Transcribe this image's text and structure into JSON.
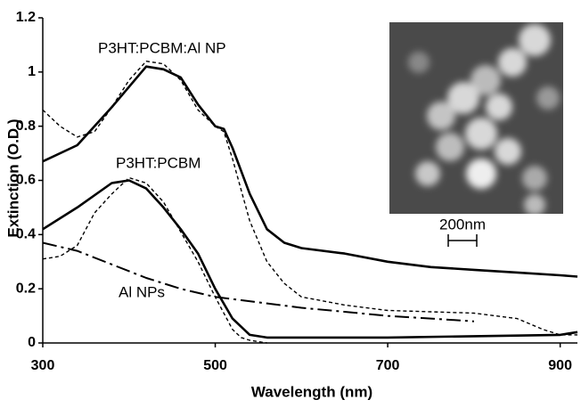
{
  "chart_data": {
    "type": "line",
    "x_label": "Wavelength (nm)",
    "y_label": "Extinction (O.D.)",
    "xlim": [
      300,
      920
    ],
    "xticks": [
      300,
      500,
      700,
      900
    ],
    "ylim": [
      0,
      1.2
    ],
    "yticks": [
      0,
      0.2,
      0.4,
      0.6,
      0.8,
      1,
      1.2
    ],
    "annotations": [
      "P3HT:PCBM:Al NP",
      "P3HT:PCBM",
      "Al NPs",
      "200nm"
    ],
    "series": [
      {
        "color": "#000000",
        "style": "solid",
        "x": [
          300,
          340,
          380,
          420,
          440,
          460,
          480,
          500,
          510,
          520,
          540,
          560,
          580,
          600,
          650,
          700,
          750,
          800,
          850,
          900,
          920
        ],
        "values": [
          0.67,
          0.73,
          0.87,
          1.02,
          1.01,
          0.98,
          0.88,
          0.8,
          0.79,
          0.72,
          0.55,
          0.42,
          0.37,
          0.35,
          0.33,
          0.3,
          0.28,
          0.27,
          0.26,
          0.25,
          0.245
        ]
      },
      {
        "color": "#000000",
        "style": "dashed",
        "x": [
          300,
          320,
          340,
          360,
          380,
          400,
          420,
          440,
          460,
          480,
          500,
          510,
          520,
          540,
          560,
          580,
          600,
          650,
          700,
          750,
          800,
          850,
          880,
          900,
          920
        ],
        "values": [
          0.86,
          0.8,
          0.76,
          0.78,
          0.87,
          0.97,
          1.04,
          1.03,
          0.97,
          0.86,
          0.8,
          0.78,
          0.68,
          0.45,
          0.3,
          0.22,
          0.17,
          0.14,
          0.12,
          0.115,
          0.11,
          0.09,
          0.05,
          0.03,
          0.03
        ]
      },
      {
        "color": "#000000",
        "style": "solid",
        "x": [
          300,
          340,
          380,
          400,
          420,
          440,
          460,
          480,
          500,
          520,
          540,
          560,
          600,
          700,
          800,
          900,
          920
        ],
        "values": [
          0.42,
          0.5,
          0.59,
          0.6,
          0.57,
          0.5,
          0.42,
          0.33,
          0.2,
          0.09,
          0.03,
          0.02,
          0.02,
          0.02,
          0.025,
          0.03,
          0.04
        ]
      },
      {
        "color": "#000000",
        "style": "dashed",
        "x": [
          300,
          320,
          340,
          360,
          380,
          400,
          420,
          440,
          460,
          480,
          500,
          520,
          530,
          540,
          560
        ],
        "values": [
          0.31,
          0.32,
          0.36,
          0.48,
          0.55,
          0.61,
          0.59,
          0.52,
          0.41,
          0.3,
          0.17,
          0.05,
          0.02,
          0.01,
          0
        ]
      },
      {
        "color": "#000000",
        "style": "dashdot",
        "x": [
          300,
          340,
          380,
          420,
          460,
          500,
          550,
          600,
          650,
          700,
          750,
          800
        ],
        "values": [
          0.37,
          0.34,
          0.29,
          0.24,
          0.2,
          0.17,
          0.15,
          0.13,
          0.115,
          0.1,
          0.09,
          0.08
        ]
      }
    ]
  }
}
